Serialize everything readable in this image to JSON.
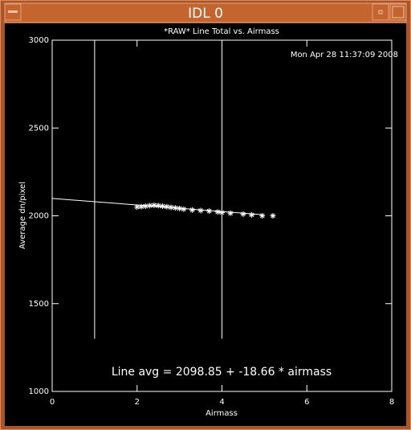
{
  "window": {
    "title": "IDL 0"
  },
  "chart_data": {
    "type": "scatter",
    "title": "*RAW* Line Total vs. Airmass",
    "timestamp": "Mon Apr 28 11:37:09 2008",
    "xlabel": "Airmass",
    "ylabel": "Average dn/pixel",
    "annotation": "Line avg = 2098.85 + -18.66 * airmass",
    "color": "#ffffff",
    "x": [
      2.0,
      2.1,
      2.2,
      2.3,
      2.4,
      2.5,
      2.6,
      2.7,
      2.8,
      2.9,
      3.0,
      3.1,
      3.3,
      3.5,
      3.7,
      3.9,
      4.0,
      4.2,
      4.5,
      4.7,
      4.95,
      5.2
    ],
    "values": [
      2050,
      2052,
      2055,
      2058,
      2060,
      2058,
      2055,
      2052,
      2048,
      2045,
      2042,
      2038,
      2033,
      2030,
      2027,
      2022,
      2018,
      2015,
      2010,
      2005,
      2000,
      2000
    ],
    "fit": {
      "x": [
        0,
        4.97
      ],
      "values": [
        2098.85,
        2006.1
      ]
    },
    "vlines": {
      "x": [
        1,
        4
      ],
      "y": [
        1300,
        3000
      ]
    },
    "xlim": [
      0,
      8
    ],
    "xticks": [
      0,
      2,
      4,
      6,
      8
    ],
    "ylim": [
      1000,
      3000
    ],
    "yticks": [
      1000,
      1500,
      2000,
      2500,
      3000
    ]
  }
}
